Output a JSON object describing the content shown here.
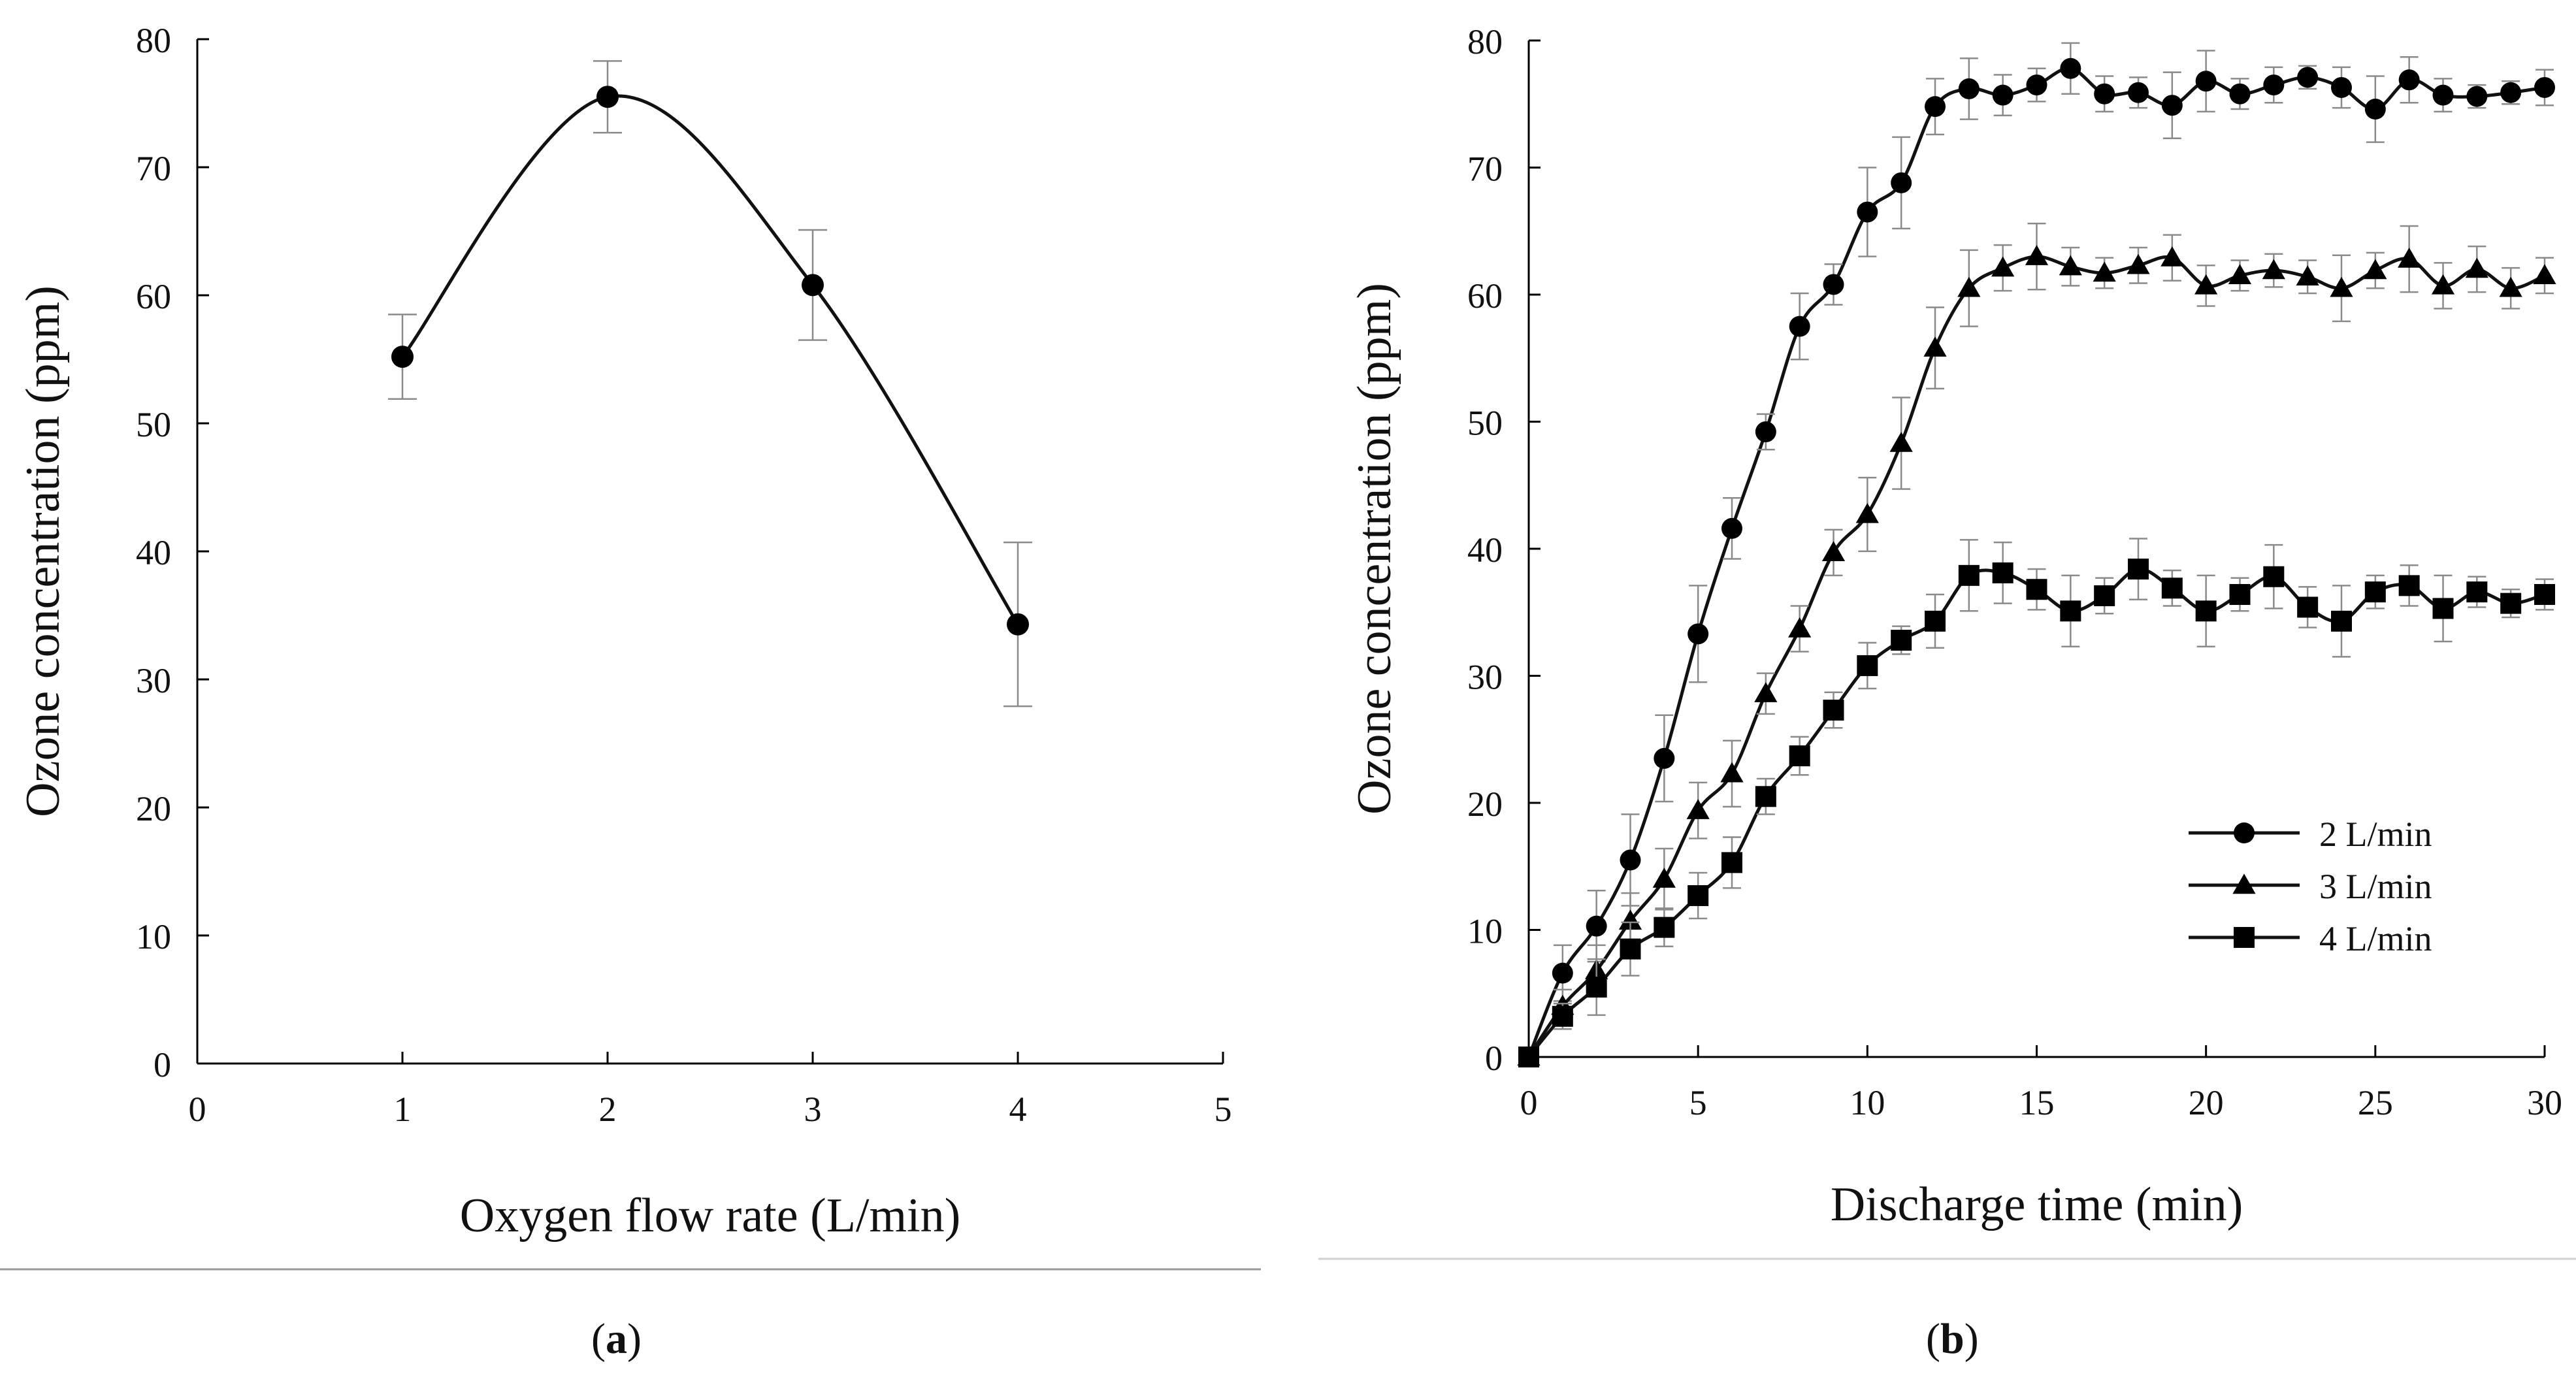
{
  "chart_data": [
    {
      "type": "scatter",
      "panel_label": "a",
      "title": "",
      "xlabel": "Oxygen flow rate (L/min)",
      "ylabel": "Ozone concentration (ppm)",
      "xlim": [
        0,
        5
      ],
      "ylim": [
        0,
        80
      ],
      "xticks": [
        0,
        1,
        2,
        3,
        4,
        5
      ],
      "yticks": [
        0,
        10,
        20,
        30,
        40,
        50,
        60,
        70,
        80
      ],
      "grid": false,
      "series": [
        {
          "name": "Ozone concentration",
          "marker": "circle",
          "smooth_line": true,
          "x": [
            1,
            2,
            3,
            4
          ],
          "y": [
            55.2,
            75.5,
            60.8,
            34.3
          ],
          "err": [
            3.3,
            2.8,
            4.3,
            6.4
          ]
        }
      ]
    },
    {
      "type": "line",
      "panel_label": "b",
      "title": "",
      "xlabel": "Discharge time (min)",
      "ylabel": "Ozone concentration (ppm)",
      "xlim": [
        0,
        30
      ],
      "ylim": [
        0,
        80
      ],
      "xticks": [
        0,
        5,
        10,
        15,
        20,
        25,
        30
      ],
      "yticks": [
        0,
        10,
        20,
        30,
        40,
        50,
        60,
        70,
        80
      ],
      "grid": false,
      "legend_position": "center-right",
      "x": [
        0,
        1,
        2,
        3,
        4,
        5,
        6,
        7,
        8,
        9,
        10,
        11,
        12,
        13,
        14,
        15,
        16,
        17,
        18,
        19,
        20,
        21,
        22,
        23,
        24,
        25,
        26,
        27,
        28,
        29,
        30
      ],
      "series": [
        {
          "name": "2 L/min",
          "marker": "circle",
          "y": [
            0,
            6.6,
            10.3,
            15.5,
            23.5,
            33.3,
            41.6,
            49.2,
            57.5,
            60.8,
            66.5,
            68.8,
            74.8,
            76.2,
            75.7,
            76.5,
            77.8,
            75.8,
            75.9,
            74.9,
            76.8,
            75.8,
            76.5,
            77.1,
            76.3,
            74.6,
            76.9,
            75.7,
            75.6,
            75.9,
            76.3
          ],
          "err": [
            0,
            2.2,
            2.8,
            3.6,
            3.4,
            3.8,
            2.4,
            1.4,
            2.6,
            1.6,
            3.5,
            3.6,
            2.2,
            2.4,
            1.6,
            1.3,
            2.0,
            1.4,
            1.2,
            2.6,
            2.4,
            1.2,
            1.4,
            0.9,
            1.6,
            2.6,
            1.8,
            1.3,
            0.9,
            0.9,
            1.4
          ]
        },
        {
          "name": "3 L/min",
          "marker": "triangle",
          "y": [
            0,
            4.0,
            6.8,
            10.7,
            14.0,
            19.4,
            22.3,
            28.6,
            33.7,
            39.7,
            42.7,
            48.3,
            55.8,
            60.5,
            62.1,
            63.0,
            62.2,
            61.7,
            62.3,
            62.9,
            60.7,
            61.5,
            61.9,
            61.4,
            60.5,
            61.9,
            62.8,
            60.7,
            62.0,
            60.5,
            61.5
          ],
          "err": [
            0,
            1.3,
            2.0,
            2.2,
            2.4,
            2.2,
            2.6,
            1.6,
            1.8,
            1.8,
            2.9,
            3.6,
            3.2,
            3.0,
            1.8,
            2.6,
            1.5,
            1.2,
            1.4,
            1.8,
            1.6,
            1.2,
            1.3,
            1.3,
            2.6,
            1.4,
            2.6,
            1.8,
            1.8,
            1.6,
            1.4
          ]
        },
        {
          "name": "4 L/min",
          "marker": "square",
          "y": [
            0,
            3.2,
            5.5,
            8.5,
            10.2,
            12.7,
            15.3,
            20.5,
            23.7,
            27.3,
            30.8,
            32.8,
            34.3,
            37.9,
            38.1,
            36.8,
            35.1,
            36.3,
            38.4,
            36.9,
            35.1,
            36.4,
            37.8,
            35.4,
            34.3,
            36.6,
            37.1,
            35.3,
            36.6,
            35.7,
            36.4
          ],
          "err": [
            0,
            1.0,
            2.2,
            2.1,
            1.5,
            1.8,
            2.0,
            1.4,
            1.5,
            1.4,
            1.8,
            1.1,
            2.1,
            2.8,
            2.4,
            1.6,
            2.8,
            1.4,
            2.4,
            1.4,
            2.8,
            1.3,
            2.5,
            1.6,
            2.8,
            1.3,
            1.6,
            2.6,
            1.2,
            1.1,
            1.2
          ]
        }
      ]
    }
  ]
}
